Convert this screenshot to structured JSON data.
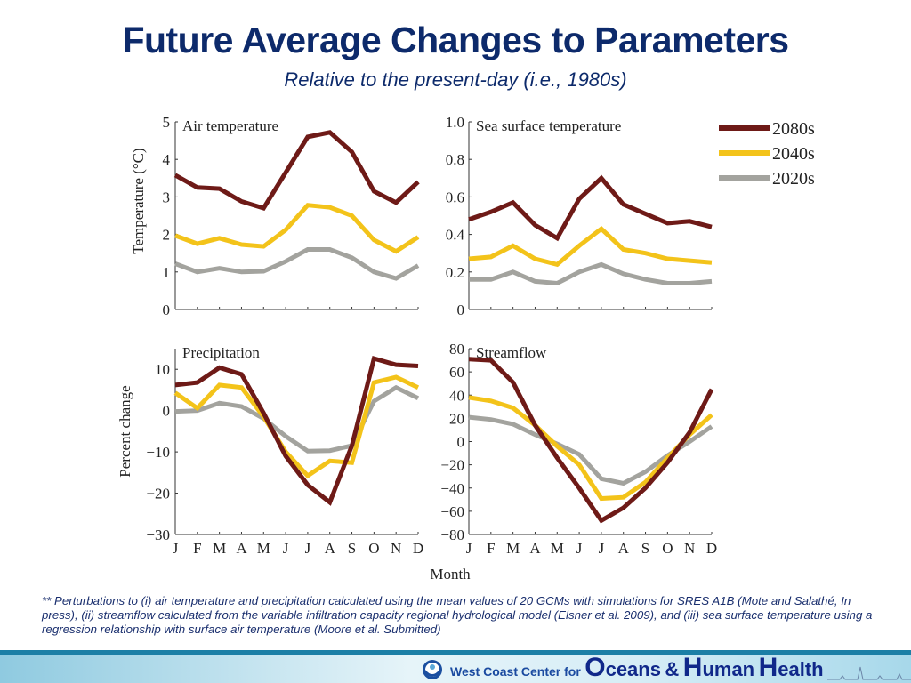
{
  "header": {
    "title": "Future Average Changes to Parameters",
    "subtitle": "Relative to the present-day (i.e., 1980s)"
  },
  "footnote": "** Perturbations to (i) air temperature and precipitation calculated using the mean values of 20 GCMs with simulations for SRES A1B (Mote and Salathé, In press), (ii) streamflow calculated from the variable infiltration capacity regional hydrological model (Elsner et al. 2009), and (iii) sea surface temperature using a regression relationship with surface air temperature (Moore et al. Submitted)",
  "footer": {
    "prefix": "West Coast Center for",
    "word1_cap": "O",
    "word1_rest": "ceans",
    "amp": "&",
    "word2_cap": "H",
    "word2_rest": "uman",
    "word3_cap": "H",
    "word3_rest": "ealth",
    "logo_icon": "noaa-logo-icon"
  },
  "colors": {
    "2080s": "#6e1a17",
    "2040s": "#f3c31a",
    "2020s": "#a3a39e",
    "axis": "#333333",
    "title": "#0d2a6b"
  },
  "chart_data": [
    {
      "type": "line",
      "title": "Air temperature",
      "ylabel": "Temperature (°C)",
      "xlabel": "",
      "ylim": [
        0,
        5
      ],
      "yticks": [
        0,
        1,
        2,
        3,
        4,
        5
      ],
      "ytick_labels": [
        "0",
        "1",
        "2",
        "3",
        "4",
        "5"
      ],
      "categories": [
        "J",
        "F",
        "M",
        "A",
        "M",
        "J",
        "J",
        "A",
        "S",
        "O",
        "N",
        "D"
      ],
      "show_xtick_labels": false,
      "legend": "none",
      "series": [
        {
          "name": "2080s",
          "values": [
            3.58,
            3.25,
            3.22,
            2.88,
            2.7,
            3.65,
            4.6,
            4.72,
            4.2,
            3.15,
            2.85,
            3.4
          ]
        },
        {
          "name": "2040s",
          "values": [
            1.97,
            1.75,
            1.9,
            1.73,
            1.68,
            2.12,
            2.78,
            2.72,
            2.5,
            1.85,
            1.55,
            1.93
          ]
        },
        {
          "name": "2020s",
          "values": [
            1.22,
            1.0,
            1.1,
            1.0,
            1.02,
            1.28,
            1.6,
            1.6,
            1.38,
            1.0,
            0.83,
            1.17
          ]
        }
      ]
    },
    {
      "type": "line",
      "title": "Sea surface temperature",
      "ylabel": "",
      "xlabel": "",
      "ylim": [
        0,
        1.0
      ],
      "yticks": [
        0,
        0.2,
        0.4,
        0.6,
        0.8,
        1.0
      ],
      "ytick_labels": [
        "0",
        "0.2",
        "0.4",
        "0.6",
        "0.8",
        "1.0"
      ],
      "categories": [
        "J",
        "F",
        "M",
        "A",
        "M",
        "J",
        "J",
        "A",
        "S",
        "O",
        "N",
        "D"
      ],
      "show_xtick_labels": false,
      "legend": "right",
      "series": [
        {
          "name": "2080s",
          "values": [
            0.48,
            0.52,
            0.57,
            0.45,
            0.38,
            0.59,
            0.7,
            0.56,
            0.51,
            0.46,
            0.47,
            0.44
          ]
        },
        {
          "name": "2040s",
          "values": [
            0.27,
            0.28,
            0.34,
            0.27,
            0.24,
            0.34,
            0.43,
            0.32,
            0.3,
            0.27,
            0.26,
            0.25
          ]
        },
        {
          "name": "2020s",
          "values": [
            0.16,
            0.16,
            0.2,
            0.15,
            0.14,
            0.2,
            0.24,
            0.19,
            0.16,
            0.14,
            0.14,
            0.15
          ]
        }
      ]
    },
    {
      "type": "line",
      "title": "Precipitation",
      "ylabel": "Percent change",
      "xlabel": "",
      "ylim": [
        -30,
        15
      ],
      "yticks": [
        -30,
        -20,
        -10,
        0,
        10
      ],
      "ytick_labels": [
        "−30",
        "−20",
        "−10",
        "0",
        "10"
      ],
      "categories": [
        "J",
        "F",
        "M",
        "A",
        "M",
        "J",
        "J",
        "A",
        "S",
        "O",
        "N",
        "D"
      ],
      "show_xtick_labels": true,
      "legend": "none",
      "series": [
        {
          "name": "2080s",
          "values": [
            6.2,
            6.8,
            10.4,
            8.8,
            -0.6,
            -11,
            -18,
            -22.2,
            -8.5,
            12.6,
            11.1,
            10.8
          ]
        },
        {
          "name": "2040s",
          "values": [
            4.3,
            0.6,
            6.2,
            5.6,
            -1.5,
            -10,
            -15.8,
            -12.2,
            -12.6,
            6.8,
            8.1,
            5.6
          ]
        },
        {
          "name": "2020s",
          "values": [
            -0.2,
            0,
            1.8,
            1.0,
            -1.9,
            -6.2,
            -9.8,
            -9.7,
            -8.5,
            2.3,
            5.6,
            3.0
          ]
        }
      ]
    },
    {
      "type": "line",
      "title": "Streamflow",
      "ylabel": "",
      "xlabel": "Month",
      "ylim": [
        -80,
        80
      ],
      "yticks": [
        -80,
        -60,
        -40,
        -20,
        0,
        20,
        40,
        60,
        80
      ],
      "ytick_labels": [
        "−80",
        "−60",
        "−40",
        "−20",
        "0",
        "20",
        "40",
        "60",
        "80"
      ],
      "categories": [
        "J",
        "F",
        "M",
        "A",
        "M",
        "J",
        "J",
        "A",
        "S",
        "O",
        "N",
        "D"
      ],
      "show_xtick_labels": true,
      "legend": "none",
      "series": [
        {
          "name": "2080s",
          "values": [
            71,
            70,
            51,
            14,
            -14,
            -40,
            -68,
            -57,
            -40,
            -18,
            8,
            45
          ]
        },
        {
          "name": "2040s",
          "values": [
            38,
            35,
            29,
            14,
            -4,
            -20,
            -49,
            -48,
            -35,
            -14,
            6,
            23
          ]
        },
        {
          "name": "2020s",
          "values": [
            21,
            19,
            15,
            6,
            -2,
            -11,
            -32,
            -36,
            -26,
            -12,
            0,
            13
          ]
        }
      ]
    }
  ]
}
